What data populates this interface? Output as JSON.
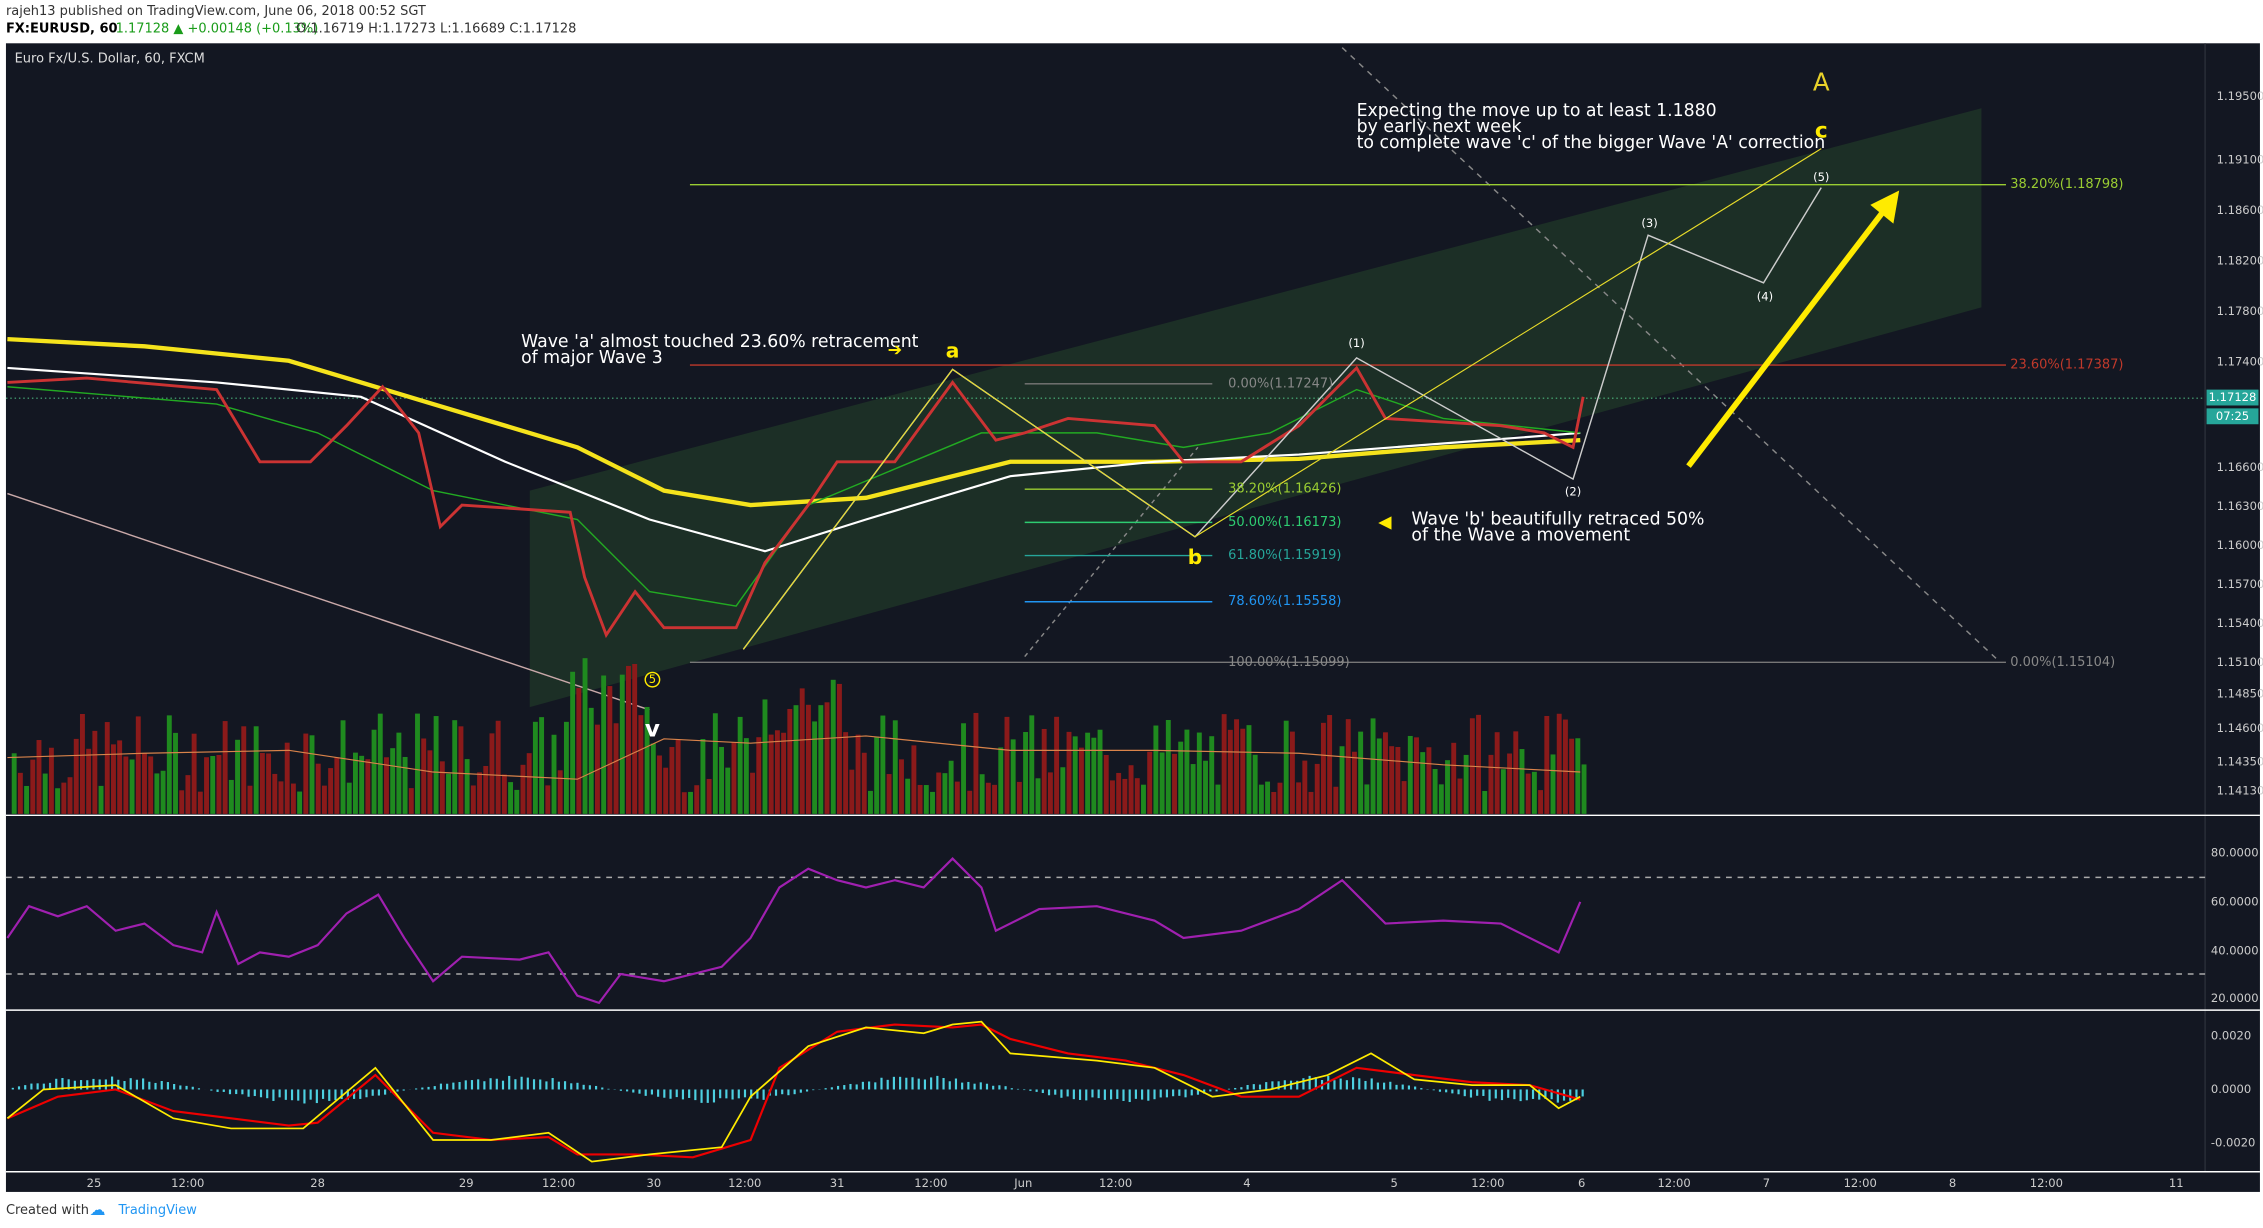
{
  "header": {
    "line1": "rajeh13 published on TradingView.com, June 06, 2018 00:52 SGT",
    "symbol": "FX:EURUSD, 60",
    "quote": "1.17128 ▲ +0.00148 (+0.13%)",
    "ohlc": "O:1.16719 H:1.17273 L:1.16689 C:1.17128"
  },
  "legend": "Euro Fx/U.S. Dollar, 60, FXCM",
  "price_axis": [
    "1.19500",
    "1.19100",
    "1.18600",
    "1.18200",
    "1.17800",
    "1.17400",
    "1.16600",
    "1.16300",
    "1.16000",
    "1.15700",
    "1.15400",
    "1.15100",
    "1.14850",
    "1.14600",
    "1.14350",
    "1.14130"
  ],
  "last_price": "1.17128",
  "countdown": "07:25",
  "time_axis": [
    "25",
    "12:00",
    "28",
    "29",
    "12:00",
    "30",
    "12:00",
    "31",
    "12:00",
    "Jun",
    "12:00",
    "4",
    "5",
    "12:00",
    "6",
    "12:00",
    "7",
    "12:00",
    "8",
    "12:00",
    "11"
  ],
  "rsi_axis": [
    "80.0000",
    "60.0000",
    "40.0000",
    "20.0000"
  ],
  "macd_axis": [
    "0.0020",
    "0.0000",
    "-0.0020"
  ],
  "fib_major": [
    "38.20%(1.18798)",
    "23.60%(1.17387)",
    "0.00%(1.15104)"
  ],
  "fib_minor": [
    "0.00%(1.17247)",
    "38.20%(1.16426)",
    "50.00%(1.16173)",
    "61.80%(1.15919)",
    "78.60%(1.15558)",
    "100.00%(1.15099)"
  ],
  "annotations": {
    "wave_a": [
      "Wave 'a' almost touched 23.60% retracement",
      "of major Wave 3"
    ],
    "expect": [
      "Expecting the move up to at least 1.1880",
      "by early next week",
      "to complete wave 'c' of the bigger Wave 'A' correction"
    ],
    "wave_b": [
      "Wave 'b' beautifully retraced 50%",
      "of the Wave a movement"
    ]
  },
  "wave_labels": {
    "A": "A",
    "c": "c",
    "a": "a",
    "b": "b",
    "v": "v",
    "five": "5",
    "w1": "(1)",
    "w2": "(2)",
    "w3": "(3)",
    "w4": "(4)",
    "w5": "(5)"
  },
  "footer": {
    "created": "Created with",
    "brand": "TradingView"
  }
}
